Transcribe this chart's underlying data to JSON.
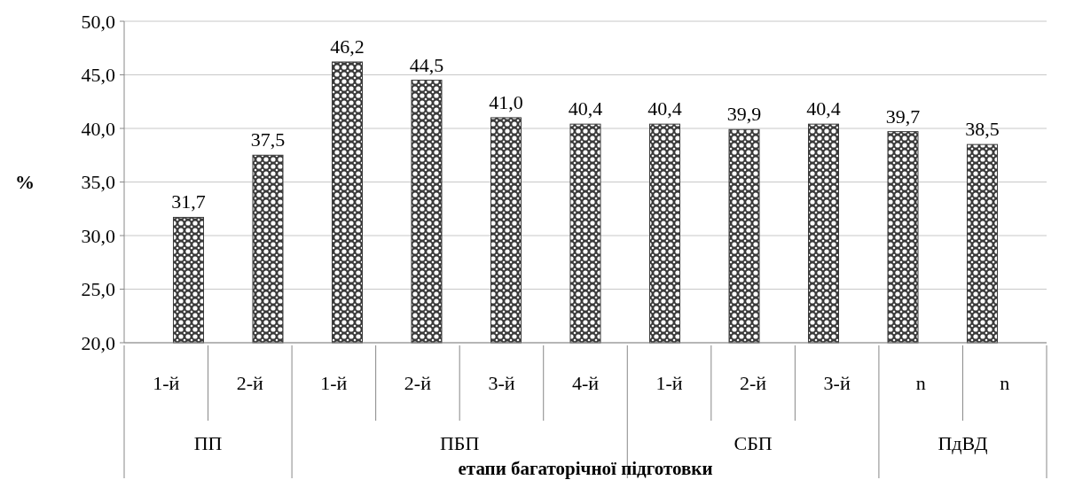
{
  "chart_data": {
    "type": "bar",
    "xlabel": "етапи багаторічної підготовки",
    "ylabel": "%",
    "categories": [
      "1-й",
      "2-й",
      "1-й",
      "2-й",
      "3-й",
      "4-й",
      "1-й",
      "2-й",
      "3-й",
      "n",
      "n"
    ],
    "values": [
      31.7,
      37.5,
      46.2,
      44.5,
      41.0,
      40.4,
      40.4,
      39.9,
      40.4,
      39.7,
      38.5
    ],
    "color": "#3a3a3a",
    "ylim": [
      20,
      50
    ],
    "yticks": [
      {
        "value": 20,
        "label": "20,0"
      },
      {
        "value": 25,
        "label": "25,0"
      },
      {
        "value": 30,
        "label": "30,0"
      },
      {
        "value": 35,
        "label": "35,0"
      },
      {
        "value": 40,
        "label": "40,0"
      },
      {
        "value": 45,
        "label": "45,0"
      },
      {
        "value": 50,
        "label": "50,0"
      }
    ],
    "value_labels": [
      "31,7",
      "37,5",
      "46,2",
      "44,5",
      "41,0",
      "40,4",
      "40,4",
      "39,9",
      "40,4",
      "39,7",
      "38,5"
    ],
    "annotations": [
      "ПП",
      "ПБП",
      "СБП",
      "ПдВД"
    ],
    "grid": "y"
  }
}
